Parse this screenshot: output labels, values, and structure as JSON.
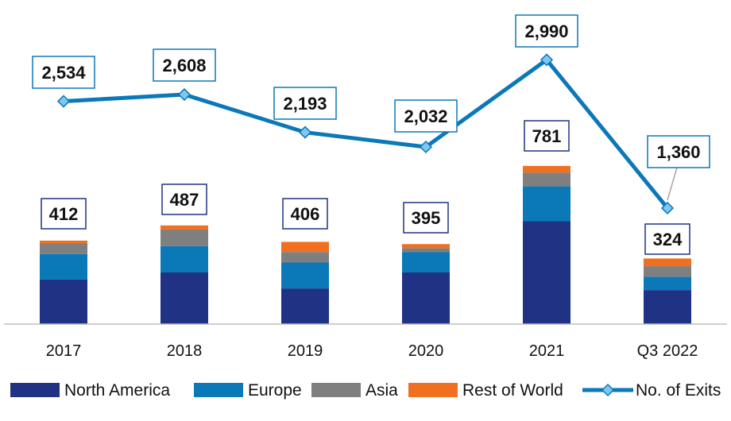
{
  "chart_data": {
    "type": "bar",
    "categories": [
      "2017",
      "2018",
      "2019",
      "2020",
      "2021",
      "Q3 2022"
    ],
    "stack_totals": [
      412,
      487,
      406,
      395,
      781,
      324
    ],
    "series": [
      {
        "name": "North America",
        "values": [
          220,
          255,
          176,
          255,
          508,
          168
        ],
        "color": "#1f3283"
      },
      {
        "name": "Europe",
        "values": [
          126,
          130,
          128,
          100,
          172,
          66
        ],
        "color": "#0b78b8"
      },
      {
        "name": "Asia",
        "values": [
          52,
          82,
          52,
          20,
          68,
          52
        ],
        "color": "#7f7f7f"
      },
      {
        "name": "Rest of World",
        "values": [
          14,
          20,
          50,
          20,
          33,
          38
        ],
        "color": "#f07020"
      }
    ],
    "line_series": {
      "name": "No. of Exits",
      "values": [
        2534,
        2608,
        2193,
        2032,
        2990,
        1360
      ],
      "color": "#0b78b8",
      "marker_color": "#7ec8f0"
    },
    "total_labels": [
      "412",
      "487",
      "406",
      "395",
      "781",
      "324"
    ],
    "exit_labels": [
      "2,534",
      "2,608",
      "2,193",
      "2,032",
      "2,990",
      "1,360"
    ],
    "legend": {
      "position": "bottom",
      "items": [
        "North America",
        "Europe",
        "Asia",
        "Rest of World",
        "No. of Exits"
      ]
    },
    "grid": false,
    "title": "",
    "xlabel": "",
    "ylabel": ""
  }
}
